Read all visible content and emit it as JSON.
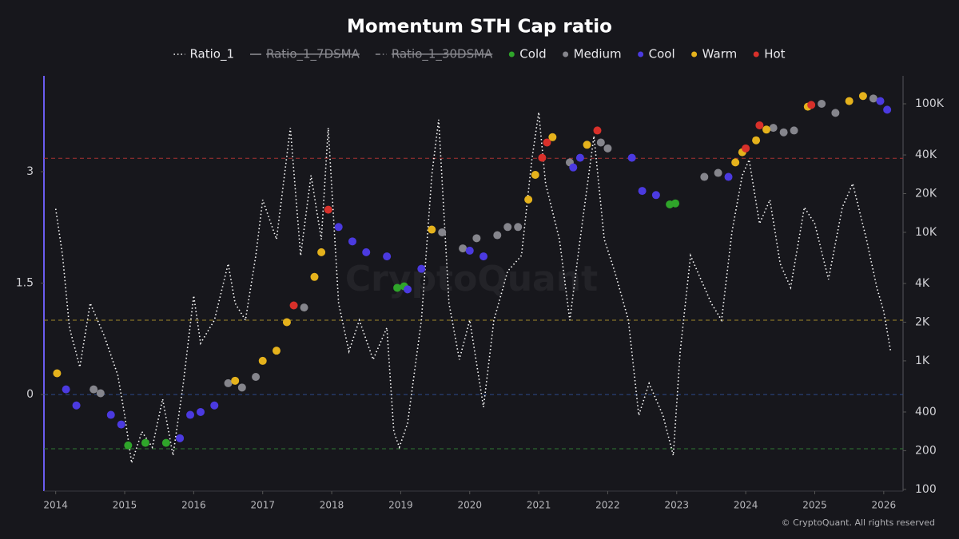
{
  "chart_data": {
    "type": "line",
    "title": "Momentum STH Cap ratio",
    "watermark": "CryptoQuant",
    "credit": "© CryptoQuant. All rights reserved",
    "xlim": [
      2013.83,
      2026.28
    ],
    "xticks": [
      2014,
      2015,
      2016,
      2017,
      2018,
      2019,
      2020,
      2021,
      2022,
      2023,
      2024,
      2025,
      2026
    ],
    "ylim": [
      -1.3,
      4.29
    ],
    "yticks": [
      0,
      1.5,
      3
    ],
    "y2lim": [
      97,
      165000
    ],
    "y2log": true,
    "y2ticks": [
      100,
      200,
      400,
      {
        "value": 1000,
        "label": "1K"
      },
      {
        "value": 2000,
        "label": "2K"
      },
      {
        "value": 4000,
        "label": "4K"
      },
      {
        "value": 10000,
        "label": "10K"
      },
      {
        "value": 20000,
        "label": "20K"
      },
      {
        "value": 40000,
        "label": "40K"
      },
      {
        "value": 100000,
        "label": "100K"
      }
    ],
    "reference_lines": [
      {
        "value": 3.18,
        "color": "#a83232"
      },
      {
        "value": 1.0,
        "color": "#a08a2a"
      },
      {
        "value": 0,
        "color": "#2d4a8a"
      },
      {
        "value": -0.73,
        "color": "#2f7a32"
      }
    ],
    "series": [
      {
        "name": "Ratio_1",
        "type": "line",
        "style": "dotted",
        "color": "#ffffff",
        "x": [
          2014.0,
          2014.1,
          2014.2,
          2014.35,
          2014.5,
          2014.7,
          2014.9,
          2015.0,
          2015.1,
          2015.25,
          2015.4,
          2015.55,
          2015.7,
          2015.85,
          2016.0,
          2016.1,
          2016.3,
          2016.5,
          2016.6,
          2016.75,
          2016.9,
          2017.0,
          2017.2,
          2017.4,
          2017.55,
          2017.7,
          2017.85,
          2017.95,
          2018.1,
          2018.25,
          2018.4,
          2018.6,
          2018.8,
          2018.9,
          2018.98,
          2019.1,
          2019.3,
          2019.45,
          2019.55,
          2019.7,
          2019.85,
          2020.0,
          2020.2,
          2020.35,
          2020.55,
          2020.75,
          2020.9,
          2021.0,
          2021.1,
          2021.3,
          2021.45,
          2021.6,
          2021.8,
          2021.95,
          2022.1,
          2022.3,
          2022.45,
          2022.6,
          2022.8,
          2022.95,
          2023.05,
          2023.2,
          2023.35,
          2023.5,
          2023.65,
          2023.8,
          2023.95,
          2024.05,
          2024.2,
          2024.35,
          2024.5,
          2024.65,
          2024.85,
          2025.0,
          2025.2,
          2025.4,
          2025.55,
          2025.75,
          2025.9,
          2026.0,
          2026.1
        ],
        "values": [
          2.5,
          1.87,
          0.9,
          0.37,
          1.23,
          0.8,
          0.26,
          -0.28,
          -0.92,
          -0.5,
          -0.71,
          -0.06,
          -0.82,
          0.15,
          1.33,
          0.69,
          1.0,
          1.76,
          1.23,
          1.0,
          1.87,
          2.62,
          2.09,
          3.59,
          1.87,
          2.95,
          2.09,
          3.59,
          1.23,
          0.58,
          1.0,
          0.47,
          0.9,
          -0.5,
          -0.71,
          -0.39,
          1.0,
          2.95,
          3.7,
          1.23,
          0.47,
          1.0,
          -0.17,
          1.0,
          1.66,
          1.87,
          3.16,
          3.8,
          2.84,
          2.09,
          1.0,
          2.09,
          3.48,
          2.09,
          1.66,
          1.0,
          -0.28,
          0.15,
          -0.28,
          -0.82,
          0.58,
          1.87,
          1.55,
          1.23,
          1.0,
          2.19,
          2.95,
          3.16,
          2.3,
          2.62,
          1.76,
          1.44,
          2.52,
          2.3,
          1.55,
          2.52,
          2.84,
          2.09,
          1.44,
          1.12,
          0.58
        ]
      },
      {
        "name": "Ratio_1_7DSMA",
        "type": "line",
        "style": "solid",
        "color": "#8a8a90",
        "hidden": true
      },
      {
        "name": "Ratio_1_30DSMA",
        "type": "line",
        "style": "dashdot",
        "color": "#8a8a90",
        "hidden": true
      },
      {
        "name": "Cold",
        "type": "scatter",
        "axis": "y2",
        "color": "#2fa52a",
        "x": [
          2015.05,
          2015.3,
          2015.6,
          2018.95,
          2019.05,
          2022.9,
          2022.98
        ],
        "values": [
          220,
          230,
          230,
          3700,
          3800,
          16500,
          16800
        ]
      },
      {
        "name": "Medium",
        "type": "scatter",
        "axis": "y2",
        "color": "#85858c",
        "x": [
          2014.55,
          2014.65,
          2016.5,
          2016.7,
          2016.9,
          2017.6,
          2019.6,
          2019.9,
          2020.1,
          2020.4,
          2020.55,
          2020.7,
          2021.45,
          2021.9,
          2022.0,
          2023.4,
          2023.6,
          2024.4,
          2024.55,
          2024.7,
          2025.1,
          2025.3,
          2025.85
        ],
        "values": [
          600,
          560,
          670,
          620,
          750,
          2600,
          10000,
          7500,
          9000,
          9500,
          11000,
          11000,
          35000,
          50000,
          45000,
          27000,
          29000,
          65000,
          60000,
          62000,
          100000,
          85000,
          110000
        ]
      },
      {
        "name": "Cool",
        "type": "scatter",
        "axis": "y2",
        "color": "#4b3ae0",
        "x": [
          2014.15,
          2014.3,
          2014.8,
          2014.95,
          2015.8,
          2015.95,
          2016.1,
          2016.3,
          2018.1,
          2018.3,
          2018.5,
          2018.8,
          2019.1,
          2019.3,
          2020.0,
          2020.2,
          2021.5,
          2021.6,
          2022.35,
          2022.5,
          2022.7,
          2023.75,
          2025.95,
          2026.05
        ],
        "values": [
          600,
          450,
          380,
          320,
          250,
          380,
          400,
          450,
          11000,
          8500,
          7000,
          6500,
          3600,
          5200,
          7200,
          6500,
          32000,
          38000,
          38000,
          21000,
          19500,
          27000,
          105000,
          90000
        ]
      },
      {
        "name": "Warm",
        "type": "scatter",
        "axis": "y2",
        "color": "#e5b21c",
        "x": [
          2014.02,
          2016.6,
          2017.0,
          2017.2,
          2017.35,
          2017.75,
          2017.85,
          2019.45,
          2020.85,
          2020.95,
          2021.2,
          2021.7,
          2023.85,
          2023.95,
          2024.15,
          2024.3,
          2024.9,
          2025.5,
          2025.7
        ],
        "values": [
          800,
          700,
          1000,
          1200,
          2000,
          4500,
          7000,
          10500,
          18000,
          28000,
          55000,
          48000,
          35000,
          42000,
          52000,
          63000,
          95000,
          105000,
          115000
        ]
      },
      {
        "name": "Hot",
        "type": "scatter",
        "axis": "y2",
        "color": "#d8302a",
        "x": [
          2017.45,
          2017.95,
          2021.05,
          2021.12,
          2021.85,
          2024.0,
          2024.2,
          2024.95
        ],
        "values": [
          2700,
          15000,
          38000,
          50000,
          62000,
          45000,
          68000,
          98000
        ]
      }
    ]
  }
}
